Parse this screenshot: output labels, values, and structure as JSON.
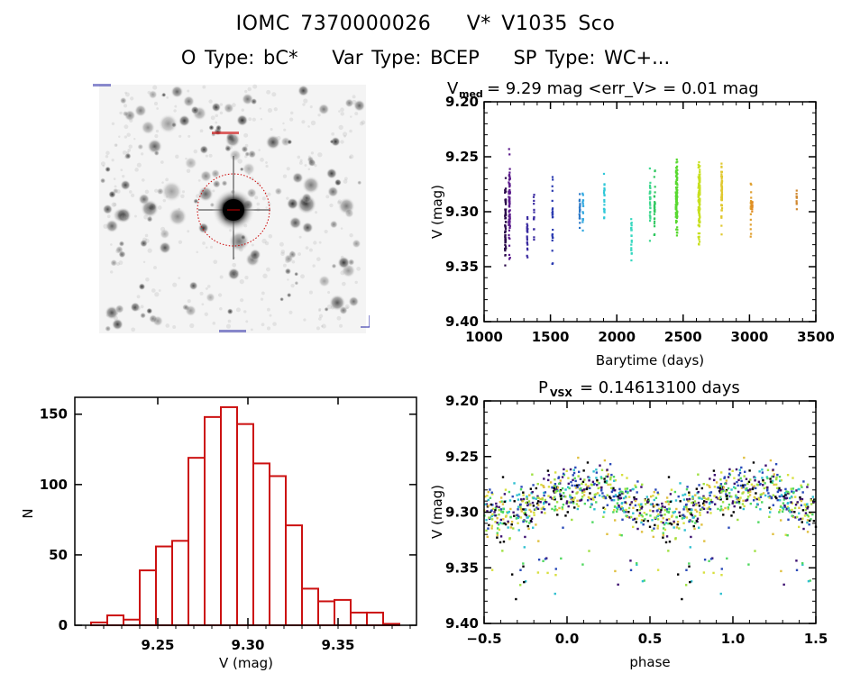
{
  "header": {
    "object_ids": [
      "IOMC 7370000026",
      "V* V1035 Sco"
    ],
    "types": [
      "O Type: bC*",
      "Var Type: BCEP",
      "SP Type: WC+..."
    ]
  },
  "finder_chart": {
    "description": "inverted greyscale sky image with red circle marking target",
    "marker_color": "#cc0000",
    "label_color": "#1a1aa0"
  },
  "chart_data": [
    {
      "id": "light_curve",
      "type": "scatter",
      "title_main": "V",
      "title_sub": "med",
      "title_rest": "= 9.29 mag  <err_V> = 0.01 mag",
      "xlabel": "Barytime (days)",
      "ylabel": "V (mag)",
      "xlim": [
        1000,
        3500
      ],
      "ylim": [
        9.4,
        9.2
      ],
      "xticks": [
        1000,
        1500,
        2000,
        2500,
        3000,
        3500
      ],
      "yticks": [
        "9.20",
        "9.25",
        "9.30",
        "9.35",
        "9.40"
      ],
      "ytick_values": [
        9.2,
        9.25,
        9.3,
        9.35,
        9.4
      ],
      "grid": false,
      "clusters": [
        {
          "t": 1160,
          "spread": 8,
          "vmin": 9.245,
          "vmax": 9.372,
          "n": 60,
          "color": "#2a0a4a"
        },
        {
          "t": 1190,
          "spread": 10,
          "vmin": 9.215,
          "vmax": 9.37,
          "n": 70,
          "color": "#5b1a8c"
        },
        {
          "t": 1325,
          "spread": 4,
          "vmin": 9.285,
          "vmax": 9.362,
          "n": 22,
          "color": "#3a2aa0"
        },
        {
          "t": 1375,
          "spread": 4,
          "vmin": 9.27,
          "vmax": 9.35,
          "n": 14,
          "color": "#3a2aa0"
        },
        {
          "t": 1515,
          "spread": 4,
          "vmin": 9.243,
          "vmax": 9.375,
          "n": 24,
          "color": "#2a3ab0"
        },
        {
          "t": 1720,
          "spread": 5,
          "vmin": 9.246,
          "vmax": 9.35,
          "n": 18,
          "color": "#2a78c8"
        },
        {
          "t": 1745,
          "spread": 6,
          "vmin": 9.266,
          "vmax": 9.33,
          "n": 16,
          "color": "#30a8e0"
        },
        {
          "t": 1905,
          "spread": 5,
          "vmin": 9.25,
          "vmax": 9.333,
          "n": 20,
          "color": "#30c8d8"
        },
        {
          "t": 2110,
          "spread": 4,
          "vmin": 9.282,
          "vmax": 9.367,
          "n": 20,
          "color": "#38d8c0"
        },
        {
          "t": 2250,
          "spread": 6,
          "vmin": 9.237,
          "vmax": 9.34,
          "n": 30,
          "color": "#40d890"
        },
        {
          "t": 2285,
          "spread": 6,
          "vmin": 9.248,
          "vmax": 9.347,
          "n": 30,
          "color": "#30c860"
        },
        {
          "t": 2450,
          "spread": 12,
          "vmin": 9.228,
          "vmax": 9.349,
          "n": 110,
          "color": "#58d830"
        },
        {
          "t": 2620,
          "spread": 12,
          "vmin": 9.22,
          "vmax": 9.35,
          "n": 130,
          "color": "#c8e020"
        },
        {
          "t": 2790,
          "spread": 6,
          "vmin": 9.235,
          "vmax": 9.336,
          "n": 60,
          "color": "#e0c830"
        },
        {
          "t": 3010,
          "spread": 5,
          "vmin": 9.249,
          "vmax": 9.35,
          "n": 20,
          "color": "#e0a030"
        },
        {
          "t": 3020,
          "spread": 3,
          "vmin": 9.286,
          "vmax": 9.303,
          "n": 10,
          "color": "#e08a20"
        },
        {
          "t": 3355,
          "spread": 2,
          "vmin": 9.27,
          "vmax": 9.306,
          "n": 10,
          "color": "#d08830"
        }
      ]
    },
    {
      "id": "histogram",
      "type": "bar",
      "xlabel": "V (mag)",
      "ylabel": "N",
      "xlim": [
        9.204,
        9.3935
      ],
      "ylim": [
        0,
        162
      ],
      "xticks": [
        "9.25",
        "9.30",
        "9.35"
      ],
      "xtick_values": [
        9.25,
        9.3,
        9.35
      ],
      "yticks": [
        "0",
        "50",
        "100",
        "150"
      ],
      "ytick_values": [
        0,
        50,
        100,
        150
      ],
      "bar_color": "#cc1111",
      "bin_start": 9.213,
      "bin_width": 0.009,
      "values": [
        2,
        7,
        4,
        39,
        56,
        60,
        119,
        148,
        155,
        143,
        115,
        106,
        71,
        26,
        17,
        18,
        9,
        9,
        1
      ]
    },
    {
      "id": "phase_curve",
      "type": "scatter",
      "title_main": "P",
      "title_sub": "VSX",
      "title_rest": "= 0.14613100 days",
      "xlabel": "phase",
      "ylabel": "V (mag)",
      "xlim": [
        -0.5,
        1.5
      ],
      "ylim": [
        9.4,
        9.2
      ],
      "xticks": [
        "−0.5",
        "0.0",
        "0.5",
        "1.0",
        "1.5"
      ],
      "xtick_values": [
        -0.5,
        0.0,
        0.5,
        1.0,
        1.5
      ],
      "yticks": [
        "9.20",
        "9.25",
        "9.30",
        "9.35",
        "9.40"
      ],
      "ytick_values": [
        9.2,
        9.25,
        9.3,
        9.35,
        9.4
      ],
      "period_days": 0.146131,
      "mean_mag": 9.29,
      "amplitude_mag": 0.012,
      "scatter_mag": 0.022,
      "n_points_per_cycle": 600,
      "colors": [
        "#000000",
        "#3b0f6f",
        "#2a4ab8",
        "#30c0d0",
        "#50d860",
        "#9ee040",
        "#d8e040",
        "#e0c040"
      ]
    }
  ]
}
